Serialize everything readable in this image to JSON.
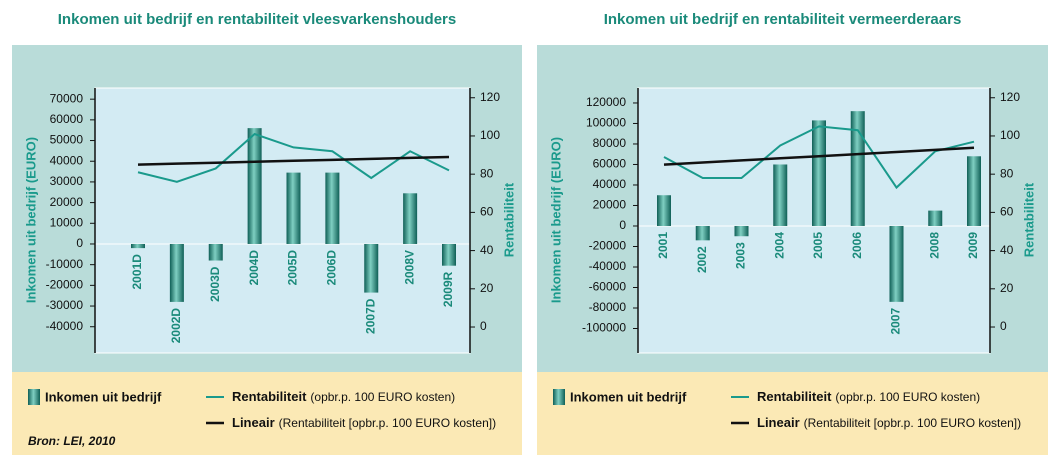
{
  "chart_data": [
    {
      "type": "bar",
      "title": "Inkomen uit bedrijf en rentabiliteit vleesvarkenshouders",
      "ylabel": "Inkomen uit bedrijf (EURO)",
      "y2label": "Rentabiliteit",
      "categories": [
        "2001D",
        "2002D",
        "2003D",
        "2004D",
        "2005D",
        "2006D",
        "2007D",
        "2008V",
        "2009R"
      ],
      "series": [
        {
          "name": "Inkomen uit bedrijf",
          "color": "#1f7f74",
          "values": [
            -2000,
            -28000,
            -8000,
            56000,
            34500,
            34500,
            -23500,
            24500,
            -10500
          ]
        },
        {
          "name": "Rentabiliteit",
          "description": "(opbr.p. 100 EURO kosten)",
          "color": "#1a9a8c",
          "axis": "y2",
          "values": [
            81,
            76,
            83,
            101,
            94,
            92,
            78,
            92,
            82
          ]
        },
        {
          "name": "Lineair",
          "description": "(Rentabiliteit [opbr.p. 100 EURO kosten])",
          "color": "#111111",
          "axis": "y2",
          "values": [
            85,
            85.5,
            86,
            86.5,
            87,
            87.5,
            88,
            88.5,
            89
          ]
        }
      ],
      "ylim": [
        -52700,
        75400
      ],
      "yticks": [
        -40000,
        -30000,
        -20000,
        -10000,
        0,
        10000,
        20000,
        30000,
        40000,
        50000,
        60000,
        70000
      ],
      "y2lim": [
        -13.6,
        125.1
      ],
      "y2ticks": [
        0,
        20,
        40,
        60,
        80,
        100,
        120
      ],
      "source": "Bron: LEI, 2010"
    },
    {
      "type": "bar",
      "title": "Inkomen uit bedrijf en rentabiliteit vermeerderaars",
      "ylabel": "Inkomen uit bedrijf (EURO)",
      "y2label": "Rentabiliteit",
      "categories": [
        "2001",
        "2002",
        "2003",
        "2004",
        "2005",
        "2006",
        "2007",
        "2008",
        "2009"
      ],
      "series": [
        {
          "name": "Inkomen uit bedrijf",
          "color": "#1f7f74",
          "values": [
            30000,
            -14000,
            -10000,
            60000,
            103000,
            112000,
            -74000,
            15000,
            68000
          ]
        },
        {
          "name": "Rentabiliteit",
          "description": "(opbr.p. 100 EURO kosten)",
          "color": "#1a9a8c",
          "axis": "y2",
          "values": [
            89,
            78,
            78,
            95,
            105,
            103,
            73,
            92,
            97
          ]
        },
        {
          "name": "Lineair",
          "description": "(Rentabiliteit [opbr.p. 100 EURO kosten])",
          "color": "#111111",
          "axis": "y2",
          "values": [
            85,
            86.1,
            87.2,
            88.3,
            89.4,
            90.5,
            91.6,
            92.7,
            93.8
          ]
        }
      ],
      "ylim": [
        -123900,
        134600
      ],
      "yticks": [
        -100000,
        -80000,
        -60000,
        -40000,
        -20000,
        0,
        20000,
        40000,
        60000,
        80000,
        100000,
        120000
      ],
      "y2lim": [
        -13.6,
        125.1
      ],
      "y2ticks": [
        0,
        20,
        40,
        60,
        80,
        100,
        120
      ]
    }
  ]
}
